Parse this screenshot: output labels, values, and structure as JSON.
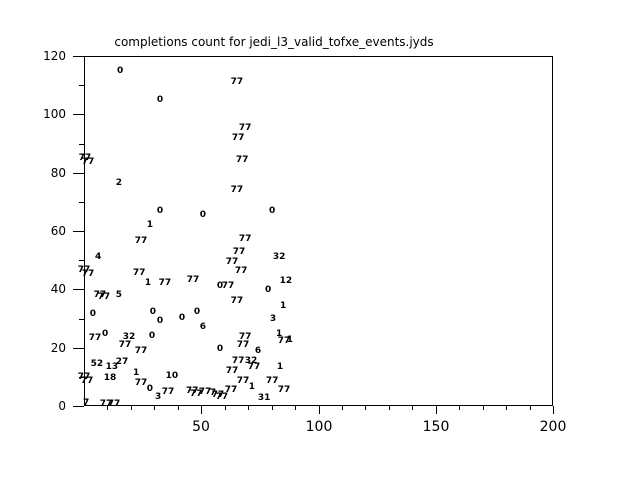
{
  "title": "completions count for jedi_l3_valid_tofxe_events.jyds",
  "colors": {
    "foreground": "#000000",
    "background": "#ffffff"
  },
  "chart_data": {
    "type": "scatter",
    "title": "completions count for jedi_l3_valid_tofxe_events.jyds",
    "xlabel": "",
    "ylabel": "",
    "xlim": [
      0,
      200
    ],
    "ylim": [
      0,
      120
    ],
    "x_major_ticks": [
      50,
      100,
      150,
      200
    ],
    "x_minor_step": 10,
    "y_major_ticks": [
      0,
      20,
      40,
      60,
      80,
      100,
      120
    ],
    "y_minor_step": 10,
    "grid": false,
    "legend": "none",
    "marker_style": "text-label",
    "points": [
      {
        "x": 15.4,
        "y": 114.5,
        "label": "0"
      },
      {
        "x": 65.2,
        "y": 110.7,
        "label": "77"
      },
      {
        "x": 32.4,
        "y": 104.5,
        "label": "0"
      },
      {
        "x": 68.7,
        "y": 94.9,
        "label": "77"
      },
      {
        "x": 65.7,
        "y": 91.5,
        "label": "77"
      },
      {
        "x": 67.4,
        "y": 83.9,
        "label": "77"
      },
      {
        "x": 0.4,
        "y": 84.6,
        "label": "77"
      },
      {
        "x": 1.7,
        "y": 83.2,
        "label": "77"
      },
      {
        "x": 14.9,
        "y": 76.3,
        "label": "2"
      },
      {
        "x": 65.2,
        "y": 73.9,
        "label": "77"
      },
      {
        "x": 80.2,
        "y": 66.7,
        "label": "0"
      },
      {
        "x": 32.4,
        "y": 66.4,
        "label": "0"
      },
      {
        "x": 50.7,
        "y": 65.0,
        "label": "0"
      },
      {
        "x": 28.1,
        "y": 61.9,
        "label": "1"
      },
      {
        "x": 68.7,
        "y": 57.1,
        "label": "77"
      },
      {
        "x": 24.3,
        "y": 56.1,
        "label": "77"
      },
      {
        "x": 66.1,
        "y": 52.6,
        "label": "77"
      },
      {
        "x": 6.0,
        "y": 50.9,
        "label": "4"
      },
      {
        "x": 63.1,
        "y": 49.2,
        "label": "77"
      },
      {
        "x": 83.2,
        "y": 50.9,
        "label": "32"
      },
      {
        "x": 0.0,
        "y": 46.4,
        "label": "77"
      },
      {
        "x": 1.7,
        "y": 45.0,
        "label": "77"
      },
      {
        "x": 67.0,
        "y": 46.1,
        "label": "77"
      },
      {
        "x": 23.5,
        "y": 45.4,
        "label": "77"
      },
      {
        "x": 86.1,
        "y": 42.6,
        "label": "12"
      },
      {
        "x": 27.3,
        "y": 42.0,
        "label": "1"
      },
      {
        "x": 34.5,
        "y": 42.0,
        "label": "77"
      },
      {
        "x": 46.5,
        "y": 43.0,
        "label": "77"
      },
      {
        "x": 58.0,
        "y": 40.9,
        "label": "0"
      },
      {
        "x": 61.4,
        "y": 40.9,
        "label": "77"
      },
      {
        "x": 6.8,
        "y": 37.8,
        "label": "77"
      },
      {
        "x": 8.5,
        "y": 37.1,
        "label": "77"
      },
      {
        "x": 14.9,
        "y": 37.8,
        "label": "5"
      },
      {
        "x": 78.5,
        "y": 39.5,
        "label": "0"
      },
      {
        "x": 65.2,
        "y": 35.8,
        "label": "77"
      },
      {
        "x": 84.9,
        "y": 34.0,
        "label": "1"
      },
      {
        "x": 3.8,
        "y": 31.3,
        "label": "0"
      },
      {
        "x": 29.4,
        "y": 32.0,
        "label": "0"
      },
      {
        "x": 48.2,
        "y": 32.0,
        "label": "0"
      },
      {
        "x": 41.8,
        "y": 29.9,
        "label": "0"
      },
      {
        "x": 32.4,
        "y": 28.9,
        "label": "0"
      },
      {
        "x": 80.6,
        "y": 29.6,
        "label": "3"
      },
      {
        "x": 50.7,
        "y": 26.8,
        "label": "6"
      },
      {
        "x": 9.0,
        "y": 24.4,
        "label": "0"
      },
      {
        "x": 4.7,
        "y": 23.0,
        "label": "77"
      },
      {
        "x": 29.0,
        "y": 23.7,
        "label": "0"
      },
      {
        "x": 19.2,
        "y": 23.4,
        "label": "32"
      },
      {
        "x": 17.5,
        "y": 20.6,
        "label": "77"
      },
      {
        "x": 24.3,
        "y": 18.6,
        "label": "77"
      },
      {
        "x": 68.7,
        "y": 23.4,
        "label": "77"
      },
      {
        "x": 67.8,
        "y": 20.6,
        "label": "77"
      },
      {
        "x": 83.2,
        "y": 24.4,
        "label": "1"
      },
      {
        "x": 85.3,
        "y": 22.0,
        "label": "77"
      },
      {
        "x": 87.8,
        "y": 22.4,
        "label": "1"
      },
      {
        "x": 58.0,
        "y": 19.3,
        "label": "0"
      },
      {
        "x": 74.2,
        "y": 18.6,
        "label": "6"
      },
      {
        "x": 5.5,
        "y": 14.1,
        "label": "52"
      },
      {
        "x": 11.9,
        "y": 13.1,
        "label": "13"
      },
      {
        "x": 16.2,
        "y": 14.8,
        "label": "27"
      },
      {
        "x": 11.1,
        "y": 9.3,
        "label": "18"
      },
      {
        "x": 22.2,
        "y": 11.0,
        "label": "1"
      },
      {
        "x": 37.5,
        "y": 10.0,
        "label": "10"
      },
      {
        "x": 65.7,
        "y": 15.1,
        "label": "77"
      },
      {
        "x": 71.2,
        "y": 15.1,
        "label": "32"
      },
      {
        "x": 72.5,
        "y": 13.1,
        "label": "77"
      },
      {
        "x": 63.1,
        "y": 11.7,
        "label": "77"
      },
      {
        "x": 83.6,
        "y": 13.1,
        "label": "1"
      },
      {
        "x": 0.0,
        "y": 9.6,
        "label": "77"
      },
      {
        "x": 1.3,
        "y": 8.3,
        "label": "77"
      },
      {
        "x": 24.3,
        "y": 7.6,
        "label": "77"
      },
      {
        "x": 28.1,
        "y": 5.5,
        "label": "0"
      },
      {
        "x": 31.6,
        "y": 2.8,
        "label": "3"
      },
      {
        "x": 35.8,
        "y": 4.5,
        "label": "77"
      },
      {
        "x": 46.1,
        "y": 4.8,
        "label": "77"
      },
      {
        "x": 47.8,
        "y": 3.8,
        "label": "77"
      },
      {
        "x": 51.6,
        "y": 4.5,
        "label": "77"
      },
      {
        "x": 55.0,
        "y": 4.1,
        "label": "7"
      },
      {
        "x": 57.1,
        "y": 3.4,
        "label": "77"
      },
      {
        "x": 58.8,
        "y": 2.8,
        "label": "77"
      },
      {
        "x": 62.7,
        "y": 5.2,
        "label": "77"
      },
      {
        "x": 67.8,
        "y": 8.3,
        "label": "77"
      },
      {
        "x": 80.2,
        "y": 8.3,
        "label": "77"
      },
      {
        "x": 71.6,
        "y": 6.2,
        "label": "1"
      },
      {
        "x": 76.8,
        "y": 2.4,
        "label": "31"
      },
      {
        "x": 85.3,
        "y": 5.2,
        "label": "77"
      },
      {
        "x": 0.9,
        "y": 0.7,
        "label": "7"
      },
      {
        "x": 9.4,
        "y": 0.3,
        "label": "77"
      },
      {
        "x": 12.8,
        "y": 0.3,
        "label": "77"
      }
    ]
  }
}
